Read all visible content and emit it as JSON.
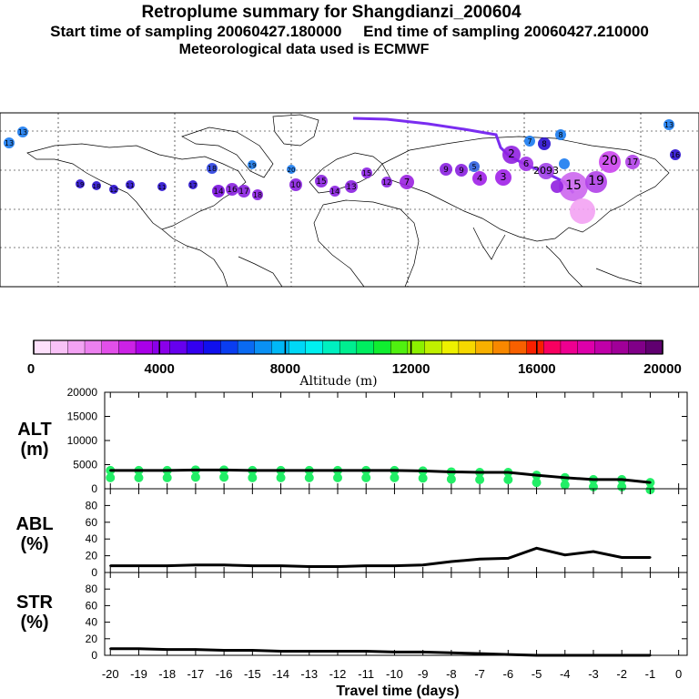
{
  "header": {
    "title": "Retroplume summary for Shangdianzi_200604",
    "line2": "Start time of sampling 20060427.180000     End time of sampling 20060427.210000",
    "line3": "Meteorological data used is ECMWF"
  },
  "colorbar": {
    "title": "Altitude (m)",
    "ticks": [
      "0",
      "4000",
      "8000",
      "12000",
      "16000",
      "20000"
    ],
    "colors": [
      "#fde0fb",
      "#f9c2f7",
      "#f3a2f3",
      "#ec80ef",
      "#e24fe9",
      "#cc22e6",
      "#a900e8",
      "#8a00ea",
      "#6600ee",
      "#3300f0",
      "#1010ee",
      "#0a3df0",
      "#0a6af2",
      "#0a90f4",
      "#00b8f6",
      "#00d8f6",
      "#00f0f0",
      "#00f0c0",
      "#00ee90",
      "#00ee60",
      "#10ee30",
      "#50f010",
      "#8cf000",
      "#c0f000",
      "#eef000",
      "#f6d800",
      "#f8b000",
      "#f88800",
      "#f86000",
      "#f82000",
      "#f80060",
      "#ee0090",
      "#dd00aa",
      "#c000a8",
      "#a00098",
      "#800088",
      "#600070"
    ]
  },
  "chart_data": [
    {
      "type": "line",
      "panel": "ALT",
      "ylabel": "ALT (m)",
      "ylim": [
        0,
        20000
      ],
      "yticks": [
        "0",
        "5000",
        "10000",
        "15000",
        "20000"
      ],
      "x": [
        -20,
        -19,
        -18,
        -17,
        -16,
        -15,
        -14,
        -13,
        -12,
        -11,
        -10,
        -9,
        -8,
        -7,
        -6,
        -5,
        -4,
        -3,
        -2,
        -1
      ],
      "values": [
        3800,
        3800,
        3800,
        3900,
        3900,
        3800,
        3800,
        3800,
        3800,
        3800,
        3800,
        3700,
        3500,
        3400,
        3400,
        2800,
        2300,
        1900,
        1900,
        1300
      ]
    },
    {
      "type": "line",
      "panel": "ABL",
      "ylabel": "ABL (%)",
      "ylim": [
        0,
        100
      ],
      "yticks": [
        "0",
        "20",
        "40",
        "60",
        "80"
      ],
      "x": [
        -20,
        -19,
        -18,
        -17,
        -16,
        -15,
        -14,
        -13,
        -12,
        -11,
        -10,
        -9,
        -8,
        -7,
        -6,
        -5,
        -4,
        -3,
        -2,
        -1
      ],
      "values": [
        8,
        8,
        8,
        9,
        9,
        8,
        8,
        7,
        7,
        8,
        8,
        9,
        13,
        16,
        17,
        29,
        21,
        25,
        18,
        18
      ]
    },
    {
      "type": "line",
      "panel": "STR",
      "ylabel": "STR (%)",
      "ylim": [
        0,
        100
      ],
      "yticks": [
        "0",
        "20",
        "40",
        "60",
        "80"
      ],
      "x": [
        -20,
        -19,
        -18,
        -17,
        -16,
        -15,
        -14,
        -13,
        -12,
        -11,
        -10,
        -9,
        -8,
        -7,
        -6,
        -5,
        -4,
        -3,
        -2,
        -1
      ],
      "values": [
        8,
        8,
        7,
        7,
        6,
        6,
        5,
        5,
        5,
        5,
        4,
        4,
        3,
        2,
        1,
        0,
        0,
        0,
        0,
        0
      ]
    }
  ],
  "xaxis": {
    "label": "Travel time (days)",
    "ticks": [
      "-20",
      "-19",
      "-18",
      "-17",
      "-16",
      "-15",
      "-14",
      "-13",
      "-12",
      "-11",
      "-10",
      "-9",
      "-8",
      "-7",
      "-6",
      "-5",
      "-4",
      "-3",
      "-2",
      "-1",
      "0"
    ]
  },
  "map": {
    "labels": [
      "13",
      "13",
      "13",
      "19",
      "18",
      "12",
      "11",
      "11",
      "17",
      "18",
      "19",
      "20",
      "14",
      "16",
      "17",
      "18",
      "10",
      "15",
      "14",
      "13",
      "15",
      "12",
      "7",
      "9",
      "9",
      "5",
      "4",
      "3",
      "2",
      "6",
      "2093",
      "8",
      "8",
      "7",
      "16",
      "15",
      "19",
      "20",
      "17"
    ]
  }
}
